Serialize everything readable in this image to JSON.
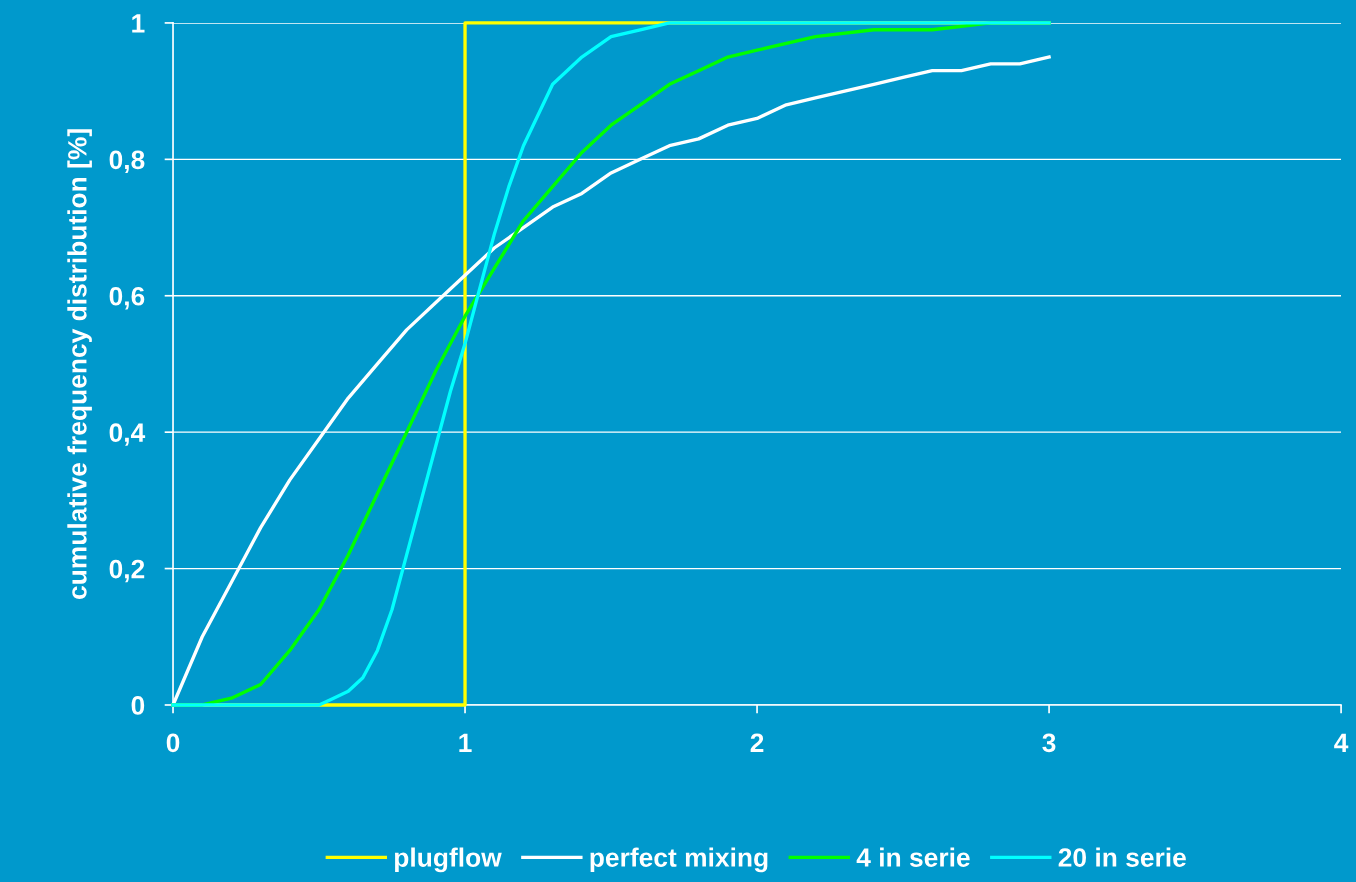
{
  "chart_data": {
    "type": "line",
    "ylabel": "cumulative frequency distribution [%]",
    "xlim": [
      0,
      4
    ],
    "xticks": [
      0,
      1,
      2,
      3,
      4
    ],
    "ylim": [
      0,
      1
    ],
    "yticks": [
      0,
      {
        "value": 0.2,
        "label": "0,2"
      },
      {
        "value": 0.4,
        "label": "0,4"
      },
      {
        "value": 0.6,
        "label": "0,6"
      },
      {
        "value": 0.8,
        "label": "0,8"
      },
      1
    ],
    "grid": "y",
    "legend": "bottom",
    "marker": "none",
    "line_style": "solid",
    "series": [
      {
        "name": "plugflow",
        "color": "#ffff00",
        "x": [
          0,
          1,
          1,
          3
        ],
        "values": [
          0,
          0,
          1,
          1
        ]
      },
      {
        "name": "perfect mixing",
        "color": "#ffffff",
        "x": [
          0,
          0.1,
          0.2,
          0.3,
          0.4,
          0.5,
          0.6,
          0.7,
          0.8,
          0.9,
          1.0,
          1.1,
          1.2,
          1.3,
          1.4,
          1.5,
          1.6,
          1.7,
          1.8,
          1.9,
          2.0,
          2.1,
          2.2,
          2.3,
          2.4,
          2.5,
          2.6,
          2.7,
          2.8,
          2.9,
          3.0
        ],
        "values": [
          0,
          0.1,
          0.18,
          0.26,
          0.33,
          0.39,
          0.45,
          0.5,
          0.55,
          0.59,
          0.63,
          0.67,
          0.7,
          0.73,
          0.75,
          0.78,
          0.8,
          0.82,
          0.83,
          0.85,
          0.86,
          0.88,
          0.89,
          0.9,
          0.91,
          0.92,
          0.93,
          0.93,
          0.94,
          0.94,
          0.95
        ]
      },
      {
        "name": "4 in serie",
        "color": "#00ff00",
        "x": [
          0,
          0.1,
          0.2,
          0.3,
          0.4,
          0.5,
          0.6,
          0.7,
          0.8,
          0.9,
          1.0,
          1.1,
          1.2,
          1.3,
          1.4,
          1.5,
          1.6,
          1.7,
          1.8,
          1.9,
          2.0,
          2.2,
          2.4,
          2.6,
          2.8,
          3.0
        ],
        "values": [
          0,
          0.0,
          0.01,
          0.03,
          0.08,
          0.14,
          0.22,
          0.31,
          0.4,
          0.49,
          0.57,
          0.64,
          0.71,
          0.76,
          0.81,
          0.85,
          0.88,
          0.91,
          0.93,
          0.95,
          0.96,
          0.98,
          0.99,
          0.99,
          1.0,
          1.0
        ]
      },
      {
        "name": "20 in serie",
        "color": "#00ffff",
        "x": [
          0,
          0.4,
          0.5,
          0.55,
          0.6,
          0.65,
          0.7,
          0.75,
          0.8,
          0.85,
          0.9,
          0.95,
          1.0,
          1.05,
          1.1,
          1.15,
          1.2,
          1.3,
          1.4,
          1.5,
          1.6,
          1.7,
          1.8,
          2.0,
          2.5,
          3.0
        ],
        "values": [
          0,
          0,
          0.0,
          0.01,
          0.02,
          0.04,
          0.08,
          0.14,
          0.22,
          0.3,
          0.38,
          0.46,
          0.53,
          0.61,
          0.69,
          0.76,
          0.82,
          0.91,
          0.95,
          0.98,
          0.99,
          1.0,
          1.0,
          1.0,
          1.0,
          1.0
        ]
      }
    ]
  }
}
